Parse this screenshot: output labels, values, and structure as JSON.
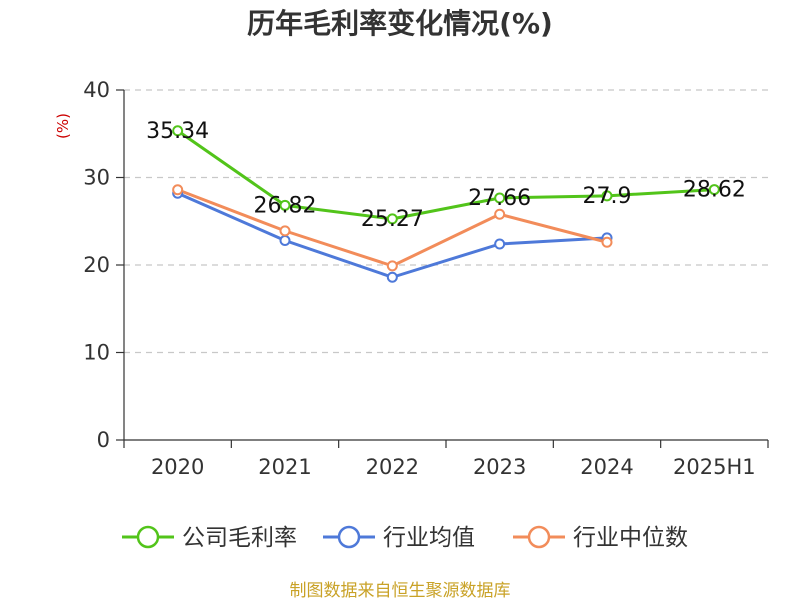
{
  "chart_data": {
    "type": "line",
    "title": "历年毛利率变化情况(%)",
    "unit_label": "(%)",
    "categories": [
      "2020",
      "2021",
      "2022",
      "2023",
      "2024",
      "2025H1"
    ],
    "ylim": [
      0,
      40
    ],
    "yticks": [
      "0",
      "10",
      "20",
      "30",
      "40"
    ],
    "grid": true,
    "legend_position": "bottom",
    "series": [
      {
        "name": "公司毛利率",
        "color": "#52c41a",
        "values": [
          35.34,
          26.82,
          25.27,
          27.66,
          27.9,
          28.62
        ],
        "labels": [
          "35.34",
          "26.82",
          "25.27",
          "27.66",
          "27.9",
          "28.62"
        ]
      },
      {
        "name": "行业均值",
        "color": "#4e79d9",
        "values": [
          28.2,
          22.8,
          18.6,
          22.4,
          23.1,
          null
        ]
      },
      {
        "name": "行业中位数",
        "color": "#f28c5a",
        "values": [
          28.6,
          23.9,
          19.9,
          25.8,
          22.6,
          null
        ]
      }
    ],
    "source": "制图数据来自恒生聚源数据库"
  }
}
